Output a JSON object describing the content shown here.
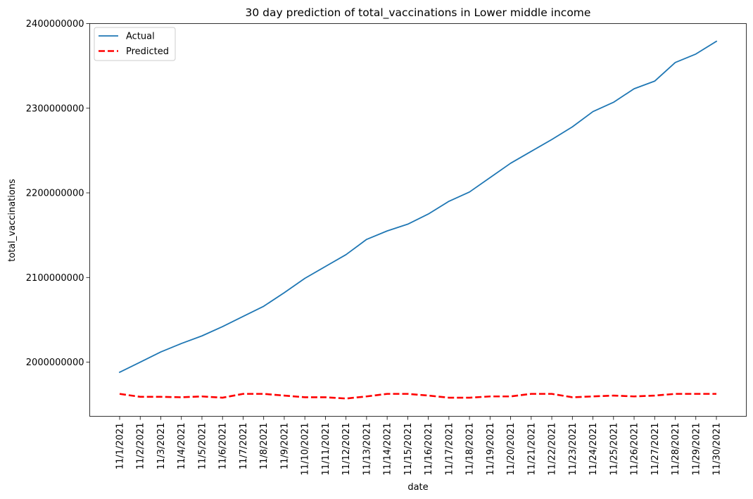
{
  "chart_data": {
    "type": "line",
    "title": "30 day prediction of total_vaccinations in Lower middle income",
    "xlabel": "date",
    "ylabel": "total_vaccinations",
    "x": [
      "11/1/2021",
      "11/2/2021",
      "11/3/2021",
      "11/4/2021",
      "11/5/2021",
      "11/6/2021",
      "11/7/2021",
      "11/8/2021",
      "11/9/2021",
      "11/10/2021",
      "11/11/2021",
      "11/12/2021",
      "11/13/2021",
      "11/14/2021",
      "11/15/2021",
      "11/16/2021",
      "11/17/2021",
      "11/18/2021",
      "11/19/2021",
      "11/20/2021",
      "11/21/2021",
      "11/22/2021",
      "11/23/2021",
      "11/24/2021",
      "11/25/2021",
      "11/26/2021",
      "11/27/2021",
      "11/28/2021",
      "11/29/2021",
      "11/30/2021"
    ],
    "yticks": [
      2000000000,
      2100000000,
      2200000000,
      2300000000,
      2400000000
    ],
    "ylim": [
      1936000000,
      2400000000
    ],
    "grid": false,
    "legend": "top-left",
    "series": [
      {
        "name": "Actual",
        "color": "#1f77b4",
        "style": "solid",
        "values": [
          1988000000,
          2000000000,
          2012000000,
          2022000000,
          2031000000,
          2042000000,
          2054000000,
          2066000000,
          2082000000,
          2099000000,
          2113000000,
          2127000000,
          2145000000,
          2155000000,
          2163000000,
          2175000000,
          2190000000,
          2201000000,
          2218000000,
          2235000000,
          2249000000,
          2263000000,
          2278000000,
          2296000000,
          2307000000,
          2323000000,
          2332000000,
          2354000000,
          2364000000,
          2379000000
        ]
      },
      {
        "name": "Predicted",
        "color": "#ff0000",
        "style": "dashed",
        "values": [
          1962500000,
          1959000000,
          1959000000,
          1958500000,
          1959500000,
          1958000000,
          1962500000,
          1962500000,
          1960500000,
          1958500000,
          1958500000,
          1957000000,
          1959500000,
          1962500000,
          1962500000,
          1960500000,
          1958000000,
          1958000000,
          1959500000,
          1959500000,
          1962500000,
          1962500000,
          1958500000,
          1959500000,
          1960500000,
          1959500000,
          1960500000,
          1962500000,
          1962500000,
          1962500000
        ]
      }
    ]
  }
}
